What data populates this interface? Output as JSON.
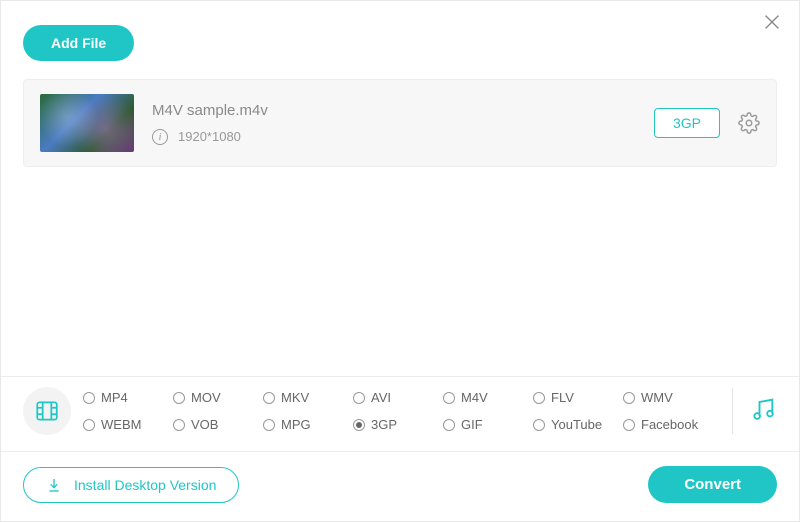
{
  "colors": {
    "accent": "#20c6c6",
    "panel_bg": "#f7f7f7",
    "text_muted": "#8a8a8a",
    "border": "#eeeeee"
  },
  "header": {
    "add_file_label": "Add File",
    "close_icon": "close-icon"
  },
  "file": {
    "name": "M4V sample.m4v",
    "resolution": "1920*1080",
    "output_format_badge": "3GP",
    "info_icon": "info-icon",
    "settings_icon": "gear-icon",
    "thumb_icon": "video-thumbnail"
  },
  "formats": {
    "category_video_icon": "film-icon",
    "category_audio_icon": "music-icon",
    "selected": "3GP",
    "options": [
      "MP4",
      "MOV",
      "MKV",
      "AVI",
      "M4V",
      "FLV",
      "WMV",
      "WEBM",
      "VOB",
      "MPG",
      "3GP",
      "GIF",
      "YouTube",
      "Facebook"
    ]
  },
  "footer": {
    "install_label": "Install Desktop Version",
    "download_icon": "download-icon",
    "convert_label": "Convert"
  }
}
